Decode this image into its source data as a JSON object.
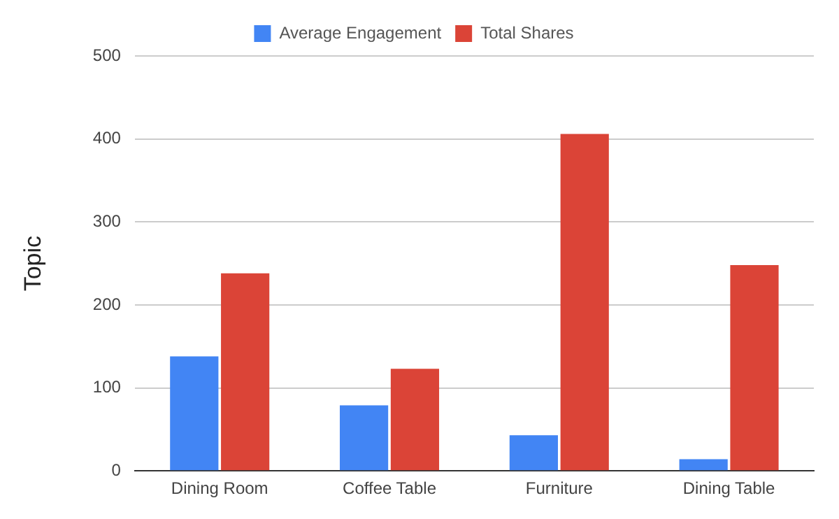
{
  "chart_data": {
    "type": "bar",
    "ylabel": "Topic",
    "categories": [
      "Dining Room",
      "Coffee Table",
      "Furniture",
      "Dining Table"
    ],
    "series": [
      {
        "name": "Average Engagement",
        "color": "#4285f4",
        "values": [
          138,
          79,
          43,
          14
        ]
      },
      {
        "name": "Total Shares",
        "color": "#db4437",
        "values": [
          238,
          123,
          406,
          248
        ]
      }
    ],
    "ylim": [
      0,
      500
    ],
    "yticks": [
      0,
      100,
      200,
      300,
      400,
      500
    ],
    "grid": "y",
    "legend": "top"
  }
}
